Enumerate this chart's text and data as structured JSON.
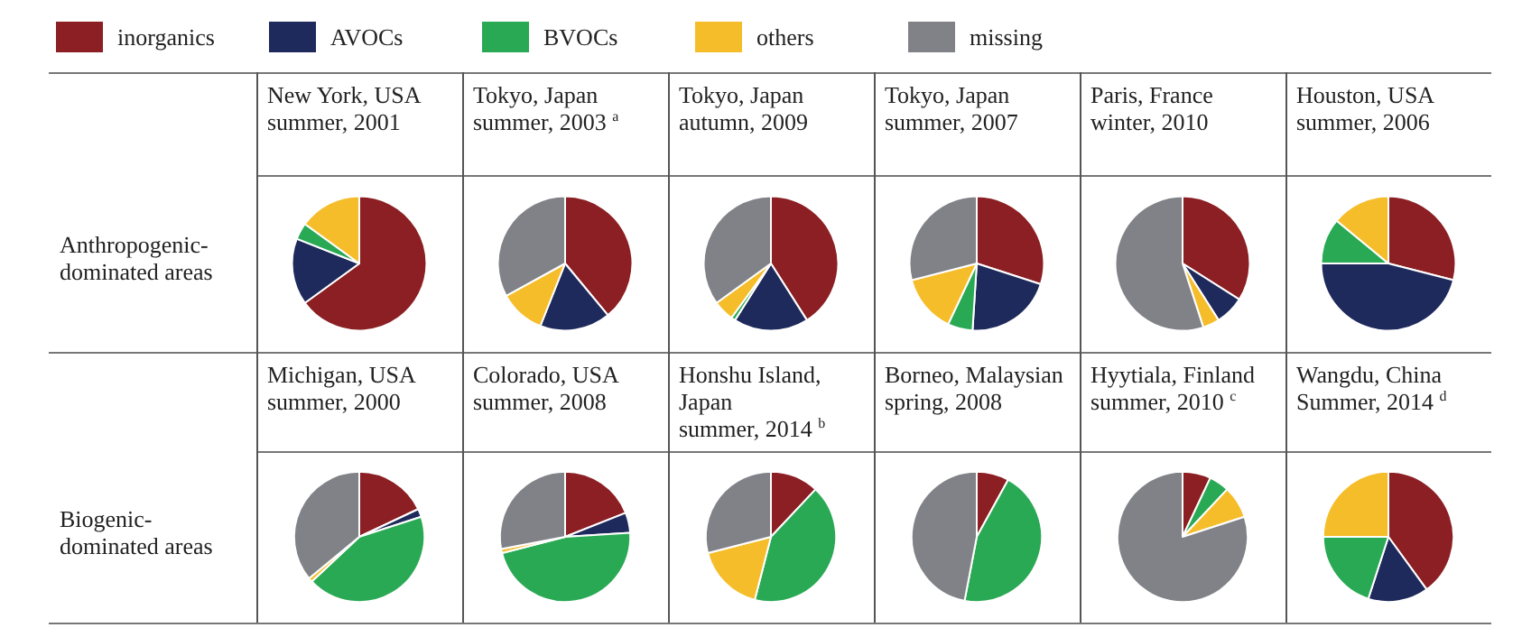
{
  "chart_data": [
    {
      "type": "pie",
      "title": "New York, USA\nsummer, 2001",
      "categories": [
        "inorganics",
        "AVOCs",
        "BVOCs",
        "others",
        "missing"
      ],
      "values": [
        65,
        16,
        4,
        15,
        0
      ],
      "colors": [
        "#8b1f23",
        "#1f2a5c",
        "#2aa955",
        "#f6bd2b",
        "#818287"
      ],
      "legend": "top",
      "annotations": [
        "Anthropogenic-\ndominated areas"
      ]
    },
    {
      "type": "pie",
      "title": "Tokyo, Japan\nsummer, 2003 $^{a}$",
      "categories": [
        null,
        null,
        null,
        null,
        null
      ],
      "values": [
        39,
        17,
        0,
        11,
        33
      ],
      "colors": [
        "#8b1f23",
        "#1f2a5c",
        "#2aa955",
        "#f6bd2b",
        "#818287"
      ]
    },
    {
      "type": "pie",
      "title": "Tokyo, Japan\nautumn, 2009",
      "categories": [
        null,
        null,
        null,
        null,
        null
      ],
      "values": [
        41,
        18,
        1,
        5,
        35
      ],
      "colors": [
        "#8b1f23",
        "#1f2a5c",
        "#2aa955",
        "#f6bd2b",
        "#818287"
      ]
    },
    {
      "type": "pie",
      "title": "Tokyo, Japan\nsummer, 2007",
      "categories": [
        null,
        null,
        null,
        null,
        null
      ],
      "values": [
        30,
        21,
        6,
        14,
        29
      ],
      "colors": [
        "#8b1f23",
        "#1f2a5c",
        "#2aa955",
        "#f6bd2b",
        "#818287"
      ]
    },
    {
      "type": "pie",
      "title": "Paris, France\nwinter, 2010",
      "categories": [
        null,
        null,
        null,
        null,
        null
      ],
      "values": [
        34,
        7,
        0,
        4,
        55
      ],
      "colors": [
        "#8b1f23",
        "#1f2a5c",
        "#2aa955",
        "#f6bd2b",
        "#818287"
      ]
    },
    {
      "type": "pie",
      "title": "Houston, USA\nsummer, 2006",
      "categories": [
        null,
        null,
        null,
        null,
        null
      ],
      "values": [
        29,
        46,
        11,
        14,
        0
      ],
      "colors": [
        "#8b1f23",
        "#1f2a5c",
        "#2aa955",
        "#f6bd2b",
        "#818287"
      ]
    },
    {
      "type": "pie",
      "title": "Michigan, USA\nsummer, 2000",
      "categories": [
        null,
        null,
        null,
        null,
        null
      ],
      "values": [
        18,
        2,
        43,
        1,
        36
      ],
      "colors": [
        "#8b1f23",
        "#1f2a5c",
        "#2aa955",
        "#f6bd2b",
        "#818287"
      ],
      "annotations": [
        "Biogenic-\ndominated areas"
      ]
    },
    {
      "type": "pie",
      "title": "Colorado, USA\nsummer, 2008",
      "categories": [
        null,
        null,
        null,
        null,
        null
      ],
      "values": [
        19,
        5,
        47,
        1,
        28
      ],
      "colors": [
        "#8b1f23",
        "#1f2a5c",
        "#2aa955",
        "#f6bd2b",
        "#818287"
      ]
    },
    {
      "type": "pie",
      "title": "Honshu Island,\nJapan\nsummer, 2014 $^{b}$",
      "categories": [
        null,
        null,
        null,
        null,
        null
      ],
      "values": [
        12,
        0,
        42,
        17,
        29
      ],
      "colors": [
        "#8b1f23",
        "#1f2a5c",
        "#2aa955",
        "#f6bd2b",
        "#818287"
      ]
    },
    {
      "type": "pie",
      "title": "Borneo, Malaysian\nspring, 2008",
      "categories": [
        null,
        null,
        null,
        null,
        null
      ],
      "values": [
        8,
        0,
        45,
        0,
        47
      ],
      "colors": [
        "#8b1f23",
        "#1f2a5c",
        "#2aa955",
        "#f6bd2b",
        "#818287"
      ]
    },
    {
      "type": "pie",
      "title": "Hyytiala, Finland\nsummer, 2010 $^{c}$",
      "categories": [
        null,
        null,
        null,
        null,
        null
      ],
      "values": [
        7,
        0,
        5,
        8,
        80
      ],
      "colors": [
        "#8b1f23",
        "#1f2a5c",
        "#2aa955",
        "#f6bd2b",
        "#818287"
      ]
    },
    {
      "type": "pie",
      "title": "Wangdu, China\nSummer, 2014 $^{d}$",
      "categories": [
        null,
        null,
        null,
        null,
        null
      ],
      "values": [
        40,
        15,
        20,
        25,
        0
      ],
      "colors": [
        "#8b1f23",
        "#1f2a5c",
        "#2aa955",
        "#f6bd2b",
        "#818287"
      ]
    }
  ]
}
